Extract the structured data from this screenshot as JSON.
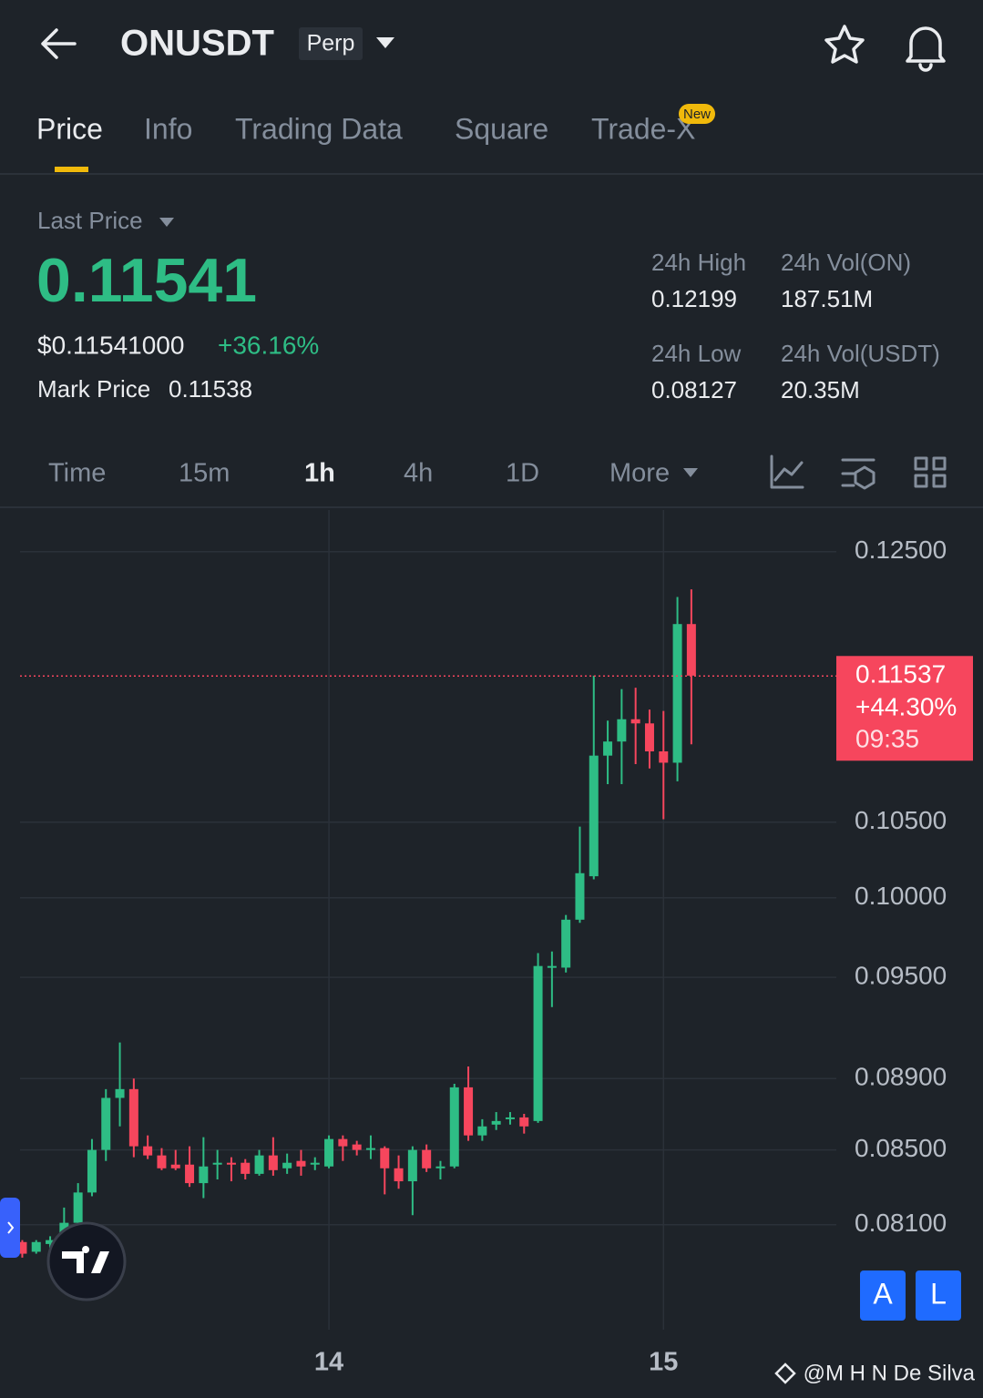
{
  "header": {
    "symbol": "ONUSDT",
    "badge": "Perp"
  },
  "tabs": [
    "Price",
    "Info",
    "Trading Data",
    "Square",
    "Trade-X"
  ],
  "tab_badge": "New",
  "last_price": {
    "label": "Last Price",
    "value": "0.11541",
    "usd": "$0.11541000",
    "change": "+36.16%",
    "mark_label": "Mark Price",
    "mark_value": "0.11538"
  },
  "stats": [
    {
      "label": "24h High",
      "value": "0.12199"
    },
    {
      "label": "24h Vol(ON)",
      "value": "187.51M"
    },
    {
      "label": "24h Low",
      "value": "0.08127"
    },
    {
      "label": "24h Vol(USDT)",
      "value": "20.35M"
    }
  ],
  "intervals": [
    "Time",
    "15m",
    "1h",
    "4h",
    "1D",
    "More"
  ],
  "buttons": [
    "A",
    "L"
  ],
  "watermark": "@M H N De Silva",
  "chart_data": {
    "type": "candlestick",
    "log_scale": true,
    "grid": true,
    "up_color": "#2ebd85",
    "down_color": "#f6465d",
    "ylim": [
      0.0757,
      0.1284
    ],
    "yticks": [
      {
        "value": 0.125,
        "label": "0.12500"
      },
      {
        "value": 0.105,
        "label": "0.10500"
      },
      {
        "value": 0.1,
        "label": "0.10000"
      },
      {
        "value": 0.095,
        "label": "0.09500"
      },
      {
        "value": 0.089,
        "label": "0.08900"
      },
      {
        "value": 0.085,
        "label": "0.08500"
      },
      {
        "value": 0.081,
        "label": "0.08100"
      }
    ],
    "xlim": [
      -0.16,
      58.4
    ],
    "xticks": [
      {
        "value": 22,
        "label": "14"
      },
      {
        "value": 46,
        "label": "15"
      }
    ],
    "open": [
      0.0801,
      0.0796,
      0.08,
      0.0799,
      0.0811,
      0.0827,
      0.085,
      0.0879,
      0.0884,
      0.0852,
      0.0847,
      0.0842,
      0.0842,
      0.0832,
      0.0842,
      0.0843,
      0.0843,
      0.0837,
      0.0847,
      0.084,
      0.0844,
      0.0842,
      0.0841,
      0.0856,
      0.0853,
      0.085,
      0.0851,
      0.084,
      0.0833,
      0.085,
      0.084,
      0.0841,
      0.0885,
      0.0858,
      0.0864,
      0.0867,
      0.0868,
      0.0866,
      0.0956,
      0.0956,
      0.0986,
      0.1014,
      0.1096,
      0.1106,
      0.1122,
      0.1119,
      0.1099,
      0.1091,
      0.1193
    ],
    "high": [
      0.0802,
      0.0802,
      0.0804,
      0.0819,
      0.0832,
      0.0856,
      0.0884,
      0.0911,
      0.089,
      0.0858,
      0.0851,
      0.085,
      0.0852,
      0.0857,
      0.085,
      0.0846,
      0.0845,
      0.085,
      0.0857,
      0.0848,
      0.085,
      0.0846,
      0.0858,
      0.0858,
      0.0855,
      0.0858,
      0.0852,
      0.0847,
      0.0852,
      0.0853,
      0.0844,
      0.0887,
      0.0897,
      0.0867,
      0.0871,
      0.0871,
      0.087,
      0.0965,
      0.0966,
      0.0989,
      0.1047,
      0.1154,
      0.1121,
      0.1144,
      0.1145,
      0.1129,
      0.1128,
      0.1214,
      0.122
    ],
    "low": [
      0.0793,
      0.0795,
      0.0798,
      0.0798,
      0.081,
      0.0825,
      0.0844,
      0.0863,
      0.0846,
      0.0845,
      0.0839,
      0.0839,
      0.083,
      0.0824,
      0.0834,
      0.0833,
      0.0834,
      0.0836,
      0.0836,
      0.0837,
      0.0836,
      0.0839,
      0.084,
      0.0844,
      0.0847,
      0.0845,
      0.0826,
      0.0829,
      0.0815,
      0.0838,
      0.0834,
      0.084,
      0.0855,
      0.0855,
      0.0861,
      0.0864,
      0.0859,
      0.0865,
      0.0932,
      0.0953,
      0.0984,
      0.1012,
      0.1076,
      0.1076,
      0.109,
      0.1087,
      0.1052,
      0.1078,
      0.1104
    ],
    "close": [
      0.0795,
      0.0801,
      0.0802,
      0.0811,
      0.0827,
      0.085,
      0.0879,
      0.0884,
      0.0852,
      0.0847,
      0.084,
      0.084,
      0.0832,
      0.0841,
      0.0843,
      0.0842,
      0.0837,
      0.0847,
      0.0839,
      0.0843,
      0.0841,
      0.0843,
      0.0856,
      0.0852,
      0.085,
      0.0851,
      0.084,
      0.0833,
      0.085,
      0.084,
      0.0841,
      0.0885,
      0.0858,
      0.0863,
      0.0866,
      0.0868,
      0.0863,
      0.0957,
      0.0957,
      0.0986,
      0.1016,
      0.1096,
      0.1106,
      0.1122,
      0.1119,
      0.1099,
      0.1091,
      0.1193,
      0.1154
    ],
    "last_price_line": {
      "value": 0.11537,
      "change": "+44.30%",
      "countdown": "09:35"
    }
  }
}
